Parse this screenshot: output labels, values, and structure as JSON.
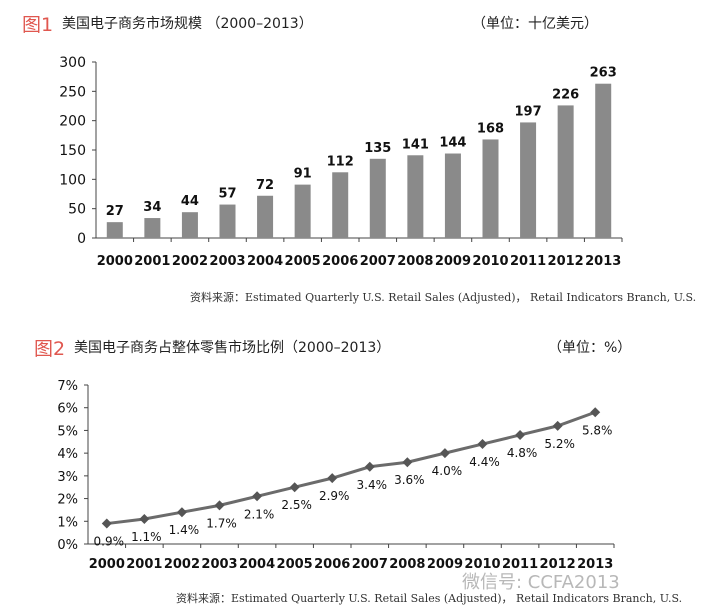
{
  "figure1": {
    "label": "图1",
    "title": "美国电子商务市场规模 （2000–2013）",
    "unit": "（单位：十亿美元）",
    "source": "资料来源：Estimated Quarterly U.S. Retail Sales (Adjusted)，  Retail Indicators Branch, U.S."
  },
  "figure2": {
    "label": "图2",
    "title": "美国电子商务占整体零售市场比例（2000–2013）",
    "unit": "（单位：%）",
    "source": "资料来源：Estimated Quarterly U.S. Retail Sales (Adjusted)，  Retail Indicators Branch, U.S."
  },
  "watermark": "微信号: CCFA2013",
  "colors": {
    "accent": "#e0574f",
    "bar": "#8a8a8a",
    "line": "#6b6b6b",
    "marker": "#555555"
  },
  "chart_data": [
    {
      "type": "bar",
      "categories": [
        "2000",
        "2001",
        "2002",
        "2003",
        "2004",
        "2005",
        "2006",
        "2007",
        "2008",
        "2009",
        "2010",
        "2011",
        "2012",
        "2013"
      ],
      "values": [
        27,
        34,
        44,
        57,
        72,
        91,
        112,
        135,
        141,
        144,
        168,
        197,
        226,
        263
      ],
      "ylim": [
        0,
        300
      ],
      "yticks": [
        0,
        50,
        100,
        150,
        200,
        250,
        300
      ],
      "grid": false
    },
    {
      "type": "line",
      "categories": [
        "2000",
        "2001",
        "2002",
        "2003",
        "2004",
        "2005",
        "2006",
        "2007",
        "2008",
        "2009",
        "2010",
        "2011",
        "2012",
        "2013"
      ],
      "values": [
        0.9,
        1.1,
        1.4,
        1.7,
        2.1,
        2.5,
        2.9,
        3.4,
        3.6,
        4.0,
        4.4,
        4.8,
        5.2,
        5.8
      ],
      "labels": [
        "0.9%",
        "1.1%",
        "1.4%",
        "1.7%",
        "2.1%",
        "2.5%",
        "2.9%",
        "3.4%",
        "3.6%",
        "4.0%",
        "4.4%",
        "4.8%",
        "5.2%",
        "5.8%"
      ],
      "ylim": [
        0,
        7
      ],
      "yticks": [
        "0%",
        "1%",
        "2%",
        "3%",
        "4%",
        "5%",
        "6%",
        "7%"
      ],
      "marker": "diamond",
      "grid": false
    }
  ]
}
